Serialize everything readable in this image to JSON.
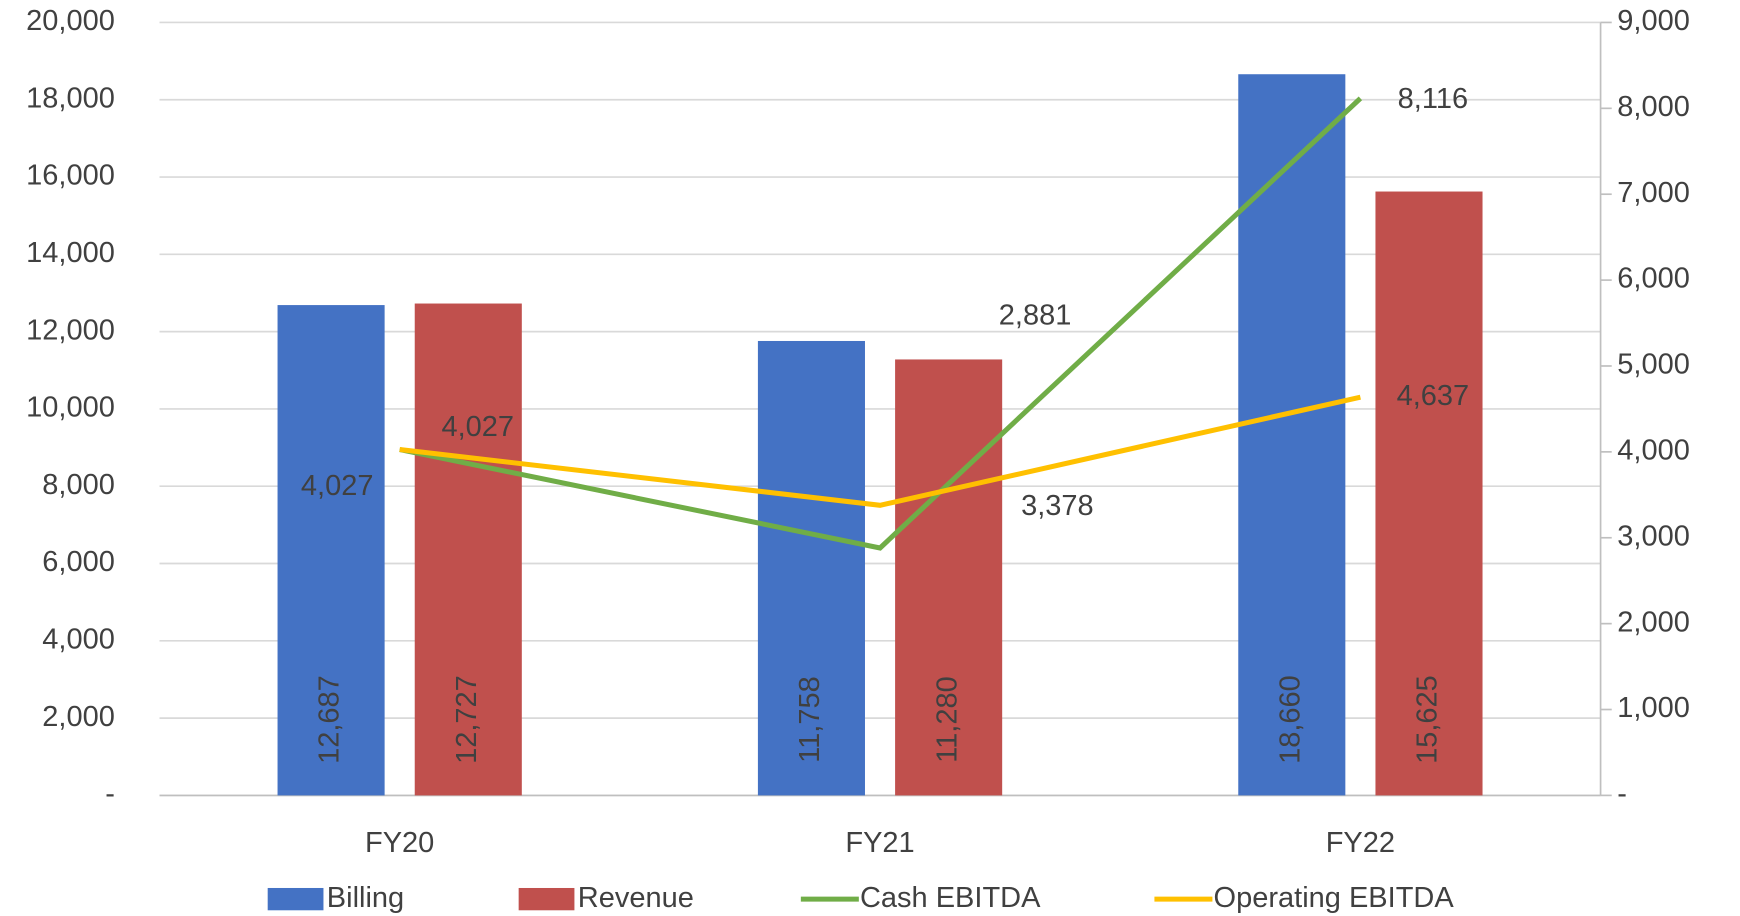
{
  "chart_data": {
    "type": "bar",
    "categories": [
      "FY20",
      "FY21",
      "FY22"
    ],
    "series": [
      {
        "name": "Billing",
        "color": "#4472c4",
        "values": [
          12687,
          11758,
          18660
        ],
        "value_labels": [
          "12,687",
          "11,758",
          "18,660"
        ]
      },
      {
        "name": "Revenue",
        "color": "#c0504d",
        "values": [
          12727,
          11280,
          15625
        ],
        "value_labels": [
          "12,727",
          "11,280",
          "15,625"
        ]
      },
      {
        "name": "Cash EBITDA",
        "type": "line",
        "axis": "y2",
        "color": "#70ad47",
        "values": [
          4027,
          2881,
          8116
        ],
        "value_labels": [
          "4,027",
          "2,881",
          "8,116"
        ]
      },
      {
        "name": "Operating EBITDA",
        "type": "line",
        "axis": "y2",
        "color": "#ffc000",
        "values": [
          4027,
          3378,
          4637
        ],
        "value_labels": [
          "4,027",
          "3,378",
          "4,637"
        ]
      }
    ],
    "ylim": [
      0,
      20000
    ],
    "yticks": [
      {
        "value": 0,
        "label": "-"
      },
      {
        "value": 2000,
        "label": "2,000"
      },
      {
        "value": 4000,
        "label": "4,000"
      },
      {
        "value": 6000,
        "label": "6,000"
      },
      {
        "value": 8000,
        "label": "8,000"
      },
      {
        "value": 10000,
        "label": "10,000"
      },
      {
        "value": 12000,
        "label": "12,000"
      },
      {
        "value": 14000,
        "label": "14,000"
      },
      {
        "value": 16000,
        "label": "16,000"
      },
      {
        "value": 18000,
        "label": "18,000"
      },
      {
        "value": 20000,
        "label": "20,000"
      }
    ],
    "y2lim": [
      0,
      9000
    ],
    "y2ticks": [
      {
        "value": 0,
        "label": "-"
      },
      {
        "value": 1000,
        "label": "1,000"
      },
      {
        "value": 2000,
        "label": "2,000"
      },
      {
        "value": 3000,
        "label": "3,000"
      },
      {
        "value": 4000,
        "label": "4,000"
      },
      {
        "value": 5000,
        "label": "5,000"
      },
      {
        "value": 6000,
        "label": "6,000"
      },
      {
        "value": 7000,
        "label": "7,000"
      },
      {
        "value": 8000,
        "label": "8,000"
      },
      {
        "value": 9000,
        "label": "9,000"
      }
    ],
    "grid": true,
    "legend": "bottom"
  }
}
